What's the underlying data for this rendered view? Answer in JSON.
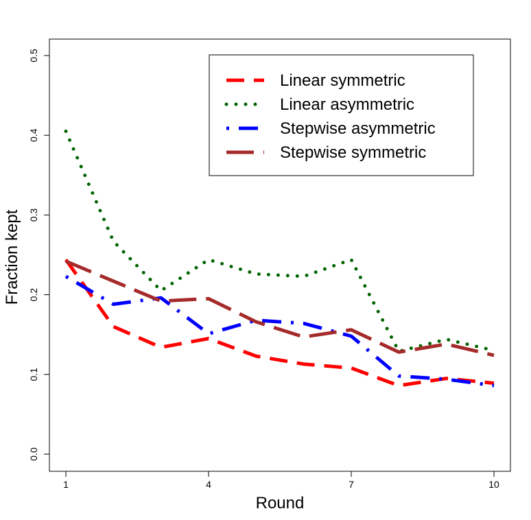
{
  "chart_data": {
    "type": "line",
    "title": "",
    "xlabel": "Round",
    "ylabel": "Fraction kept",
    "xlim": [
      1,
      10
    ],
    "ylim": [
      0.0,
      0.5
    ],
    "x": [
      1,
      2,
      3,
      4,
      5,
      6,
      7,
      8,
      9,
      10
    ],
    "x_ticks": [
      1,
      4,
      7,
      10
    ],
    "y_ticks": [
      0.0,
      0.1,
      0.2,
      0.3,
      0.4,
      0.5
    ],
    "y_tick_labels": [
      "0.0",
      "0.1",
      "0.2",
      "0.3",
      "0.4",
      "0.5"
    ],
    "grid": false,
    "legend_position": "top-right",
    "series": [
      {
        "name": "Linear symmetric",
        "color": "#ff0000",
        "style": "dashed",
        "values": [
          0.244,
          0.16,
          0.134,
          0.145,
          0.123,
          0.113,
          0.108,
          0.086,
          0.095,
          0.089
        ]
      },
      {
        "name": "Linear asymmetric",
        "color": "#006400",
        "style": "dotted",
        "values": [
          0.405,
          0.267,
          0.205,
          0.244,
          0.226,
          0.223,
          0.244,
          0.129,
          0.144,
          0.13
        ]
      },
      {
        "name": "Stepwise asymmetric",
        "color": "#0000ff",
        "style": "dotdash",
        "values": [
          0.223,
          0.188,
          0.196,
          0.151,
          0.168,
          0.164,
          0.148,
          0.098,
          0.094,
          0.086
        ]
      },
      {
        "name": "Stepwise symmetric",
        "color": "#a52a2a",
        "style": "longdash",
        "values": [
          0.242,
          0.217,
          0.192,
          0.195,
          0.166,
          0.147,
          0.156,
          0.128,
          0.138,
          0.124
        ]
      }
    ]
  }
}
